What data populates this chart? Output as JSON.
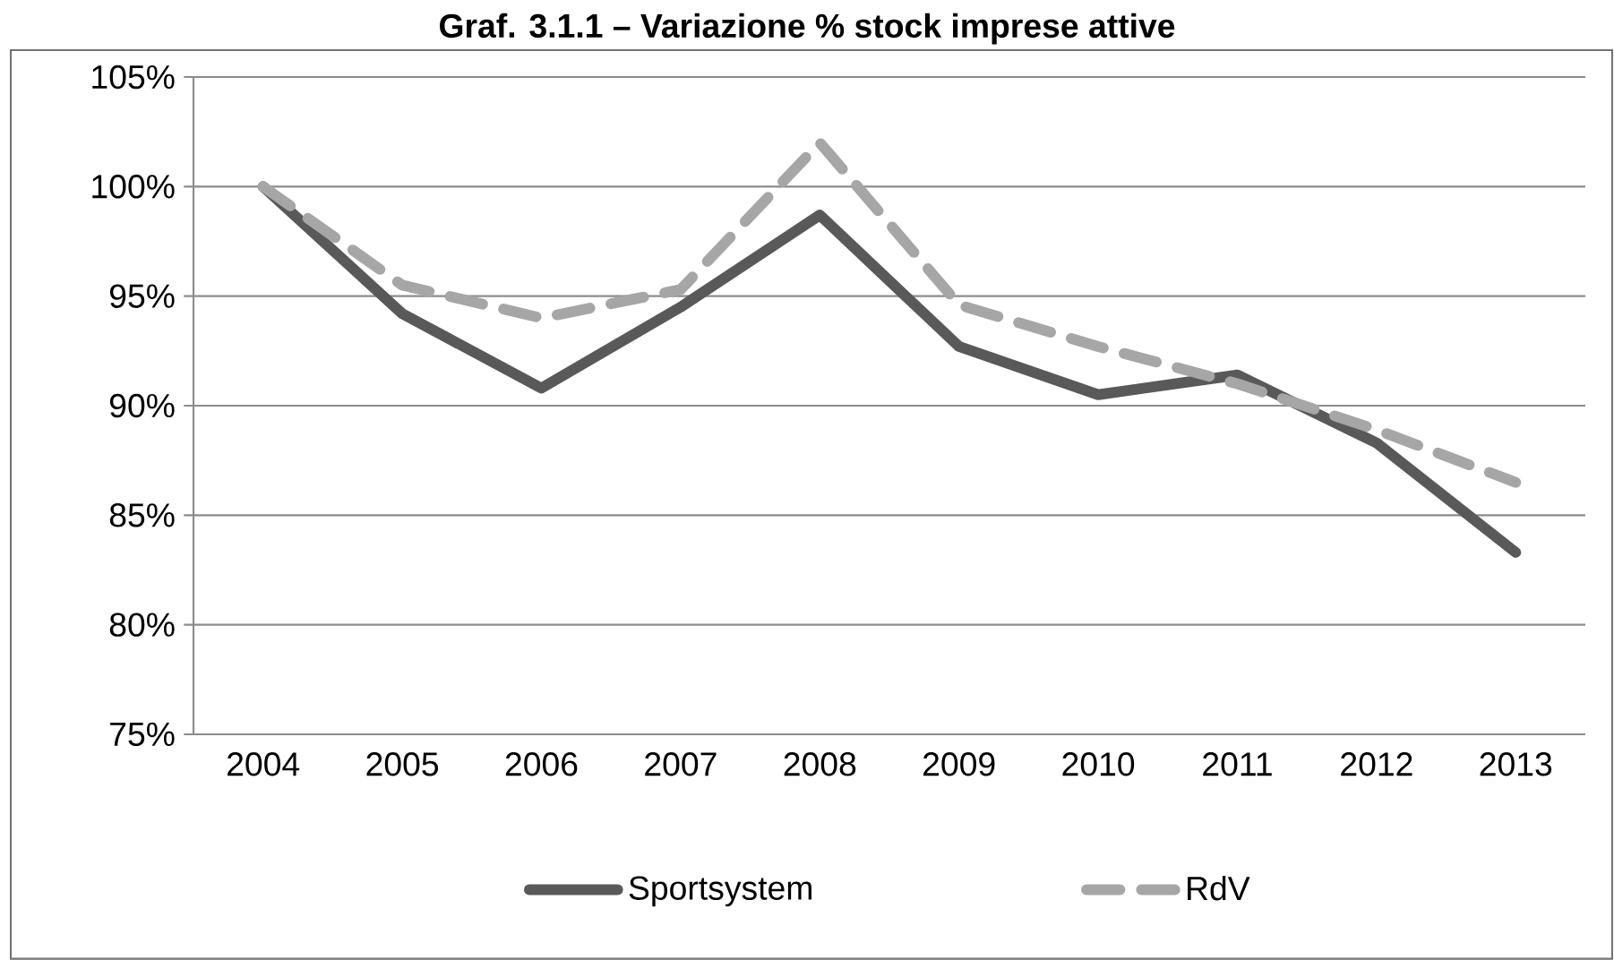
{
  "chart_data": {
    "type": "line",
    "title": "Graf. 3.1.1 – Variazione % stock imprese attive",
    "categories": [
      "2004",
      "2005",
      "2006",
      "2007",
      "2008",
      "2009",
      "2010",
      "2011",
      "2012",
      "2013"
    ],
    "series": [
      {
        "name": "Sportsystem",
        "color": "#595959",
        "line_style": "solid",
        "values": [
          100,
          94.2,
          90.8,
          94.5,
          98.7,
          92.7,
          90.5,
          91.4,
          88.3,
          83.3
        ]
      },
      {
        "name": "RdV",
        "color": "#a6a6a6",
        "line_style": "dashed",
        "values": [
          100,
          95.5,
          94.0,
          95.3,
          102.0,
          94.6,
          92.7,
          91.0,
          88.9,
          86.5
        ]
      }
    ],
    "ylim": [
      75,
      105
    ],
    "yticks": [
      {
        "value": 75,
        "label": "75%"
      },
      {
        "value": 80,
        "label": "80%"
      },
      {
        "value": 85,
        "label": "85%"
      },
      {
        "value": 90,
        "label": "90%"
      },
      {
        "value": 95,
        "label": "95%"
      },
      {
        "value": 100,
        "label": "100%"
      },
      {
        "value": 105,
        "label": "105%"
      }
    ],
    "grid": "y",
    "legend": "bottom",
    "marker": "none"
  }
}
